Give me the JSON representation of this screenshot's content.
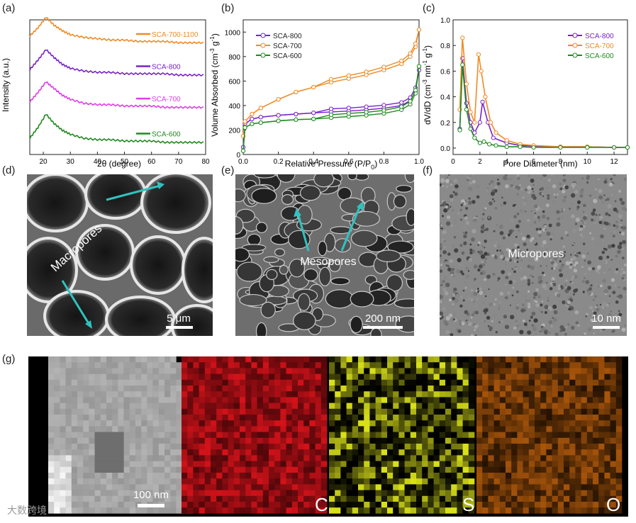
{
  "panel_labels": {
    "a": "(a)",
    "b": "(b)",
    "c": "(c)",
    "d": "(d)",
    "e": "(e)",
    "f": "(f)",
    "g": "(g)"
  },
  "chart_data": [
    {
      "type": "line",
      "panel": "a",
      "xlabel": "2θ (degree)",
      "ylabel": "Intensity (a.u.)",
      "xlim": [
        15,
        80
      ],
      "xticks": [
        20,
        30,
        40,
        50,
        60,
        70,
        80
      ],
      "series": [
        {
          "name": "SCA-700-1100",
          "color": "#f08a24",
          "offset": 0.82,
          "x": [
            15,
            18,
            21,
            24,
            27,
            30,
            35,
            40,
            45,
            50,
            55,
            60,
            65,
            70,
            75,
            80
          ],
          "y": [
            0.06,
            0.12,
            0.2,
            0.14,
            0.1,
            0.07,
            0.05,
            0.04,
            0.03,
            0.03,
            0.02,
            0.02,
            0.02,
            0.01,
            0.01,
            0.01
          ]
        },
        {
          "name": "SCA-800",
          "color": "#7a22c8",
          "offset": 0.58,
          "x": [
            15,
            18,
            21,
            24,
            27,
            30,
            35,
            40,
            45,
            50,
            55,
            60,
            65,
            70,
            75,
            80
          ],
          "y": [
            0.05,
            0.12,
            0.2,
            0.14,
            0.09,
            0.06,
            0.04,
            0.03,
            0.03,
            0.02,
            0.02,
            0.02,
            0.02,
            0.01,
            0.01,
            0.01
          ]
        },
        {
          "name": "SCA-700",
          "color": "#e03ce8",
          "offset": 0.34,
          "x": [
            15,
            18,
            21,
            24,
            27,
            30,
            35,
            40,
            45,
            50,
            55,
            60,
            65,
            70,
            75,
            80
          ],
          "y": [
            0.05,
            0.12,
            0.2,
            0.15,
            0.1,
            0.07,
            0.04,
            0.03,
            0.03,
            0.02,
            0.02,
            0.02,
            0.01,
            0.01,
            0.01,
            0.01
          ]
        },
        {
          "name": "SCA-600",
          "color": "#1f8a1f",
          "offset": 0.08,
          "x": [
            15,
            18,
            21,
            24,
            27,
            30,
            35,
            40,
            45,
            50,
            55,
            60,
            65,
            70,
            75,
            80
          ],
          "y": [
            0.04,
            0.12,
            0.22,
            0.15,
            0.1,
            0.07,
            0.04,
            0.03,
            0.03,
            0.02,
            0.02,
            0.02,
            0.01,
            0.01,
            0.01,
            0.01
          ]
        }
      ]
    },
    {
      "type": "line",
      "panel": "b",
      "xlabel": "Relative Pressure (P/P0)",
      "ylabel": "Volume Absorbed (cm-3 g-1)",
      "xlim": [
        0,
        1
      ],
      "ylim": [
        0,
        1100
      ],
      "xticks": [
        "0.0",
        "0.2",
        "0.4",
        "0.6",
        "0.8",
        "1.0"
      ],
      "yticks": [
        "0",
        "200",
        "400",
        "600",
        "800",
        "1000"
      ],
      "series": [
        {
          "name": "SCA-800",
          "color": "#7a22c8",
          "x": [
            0,
            0.01,
            0.05,
            0.1,
            0.2,
            0.3,
            0.4,
            0.5,
            0.6,
            0.7,
            0.8,
            0.9,
            0.95,
            0.98,
            1.0
          ],
          "y": [
            60,
            250,
            290,
            305,
            320,
            330,
            340,
            348,
            355,
            365,
            378,
            400,
            440,
            520,
            690
          ]
        },
        {
          "name": "SCA-700",
          "color": "#f08a24",
          "x": [
            0,
            0.01,
            0.05,
            0.1,
            0.2,
            0.3,
            0.4,
            0.5,
            0.6,
            0.7,
            0.8,
            0.9,
            0.95,
            0.98,
            1.0
          ],
          "y": [
            150,
            270,
            330,
            380,
            450,
            510,
            550,
            590,
            620,
            650,
            690,
            740,
            800,
            880,
            1020
          ]
        },
        {
          "name": "SCA-600",
          "color": "#1f8a1f",
          "x": [
            0,
            0.01,
            0.05,
            0.1,
            0.2,
            0.3,
            0.4,
            0.5,
            0.6,
            0.7,
            0.8,
            0.9,
            0.95,
            0.98,
            1.0
          ],
          "y": [
            30,
            220,
            250,
            260,
            275,
            285,
            290,
            300,
            310,
            320,
            335,
            365,
            410,
            500,
            720
          ]
        }
      ]
    },
    {
      "type": "line",
      "panel": "c",
      "xlabel": "Pore Diameter (nm)",
      "ylabel": "dV/dD (cm-3 nm-1 g-1)",
      "xlim": [
        0,
        13
      ],
      "ylim": [
        -0.05,
        1.0
      ],
      "xticks": [
        "0",
        "2",
        "4",
        "6",
        "8",
        "10",
        "12"
      ],
      "yticks": [
        "0.0",
        "0.2",
        "0.4",
        "0.6",
        "0.8",
        "1.0"
      ],
      "series": [
        {
          "name": "SCA-800",
          "color": "#7a22c8",
          "x": [
            0.5,
            0.7,
            1.0,
            1.3,
            1.6,
            2.0,
            2.2,
            2.6,
            3.0,
            4,
            5,
            6,
            8,
            10,
            12,
            13
          ],
          "y": [
            0.15,
            0.7,
            0.35,
            0.2,
            0.12,
            0.2,
            0.36,
            0.2,
            0.08,
            0.04,
            0.02,
            0.015,
            0.01,
            0.01,
            0.005,
            0.005
          ]
        },
        {
          "name": "SCA-700",
          "color": "#f08a24",
          "x": [
            0.5,
            0.7,
            1.0,
            1.3,
            1.6,
            1.9,
            2.1,
            2.4,
            2.8,
            3.2,
            4,
            5,
            6,
            8,
            10,
            12,
            13
          ],
          "y": [
            0.3,
            0.86,
            0.5,
            0.28,
            0.2,
            0.73,
            0.6,
            0.4,
            0.2,
            0.12,
            0.06,
            0.03,
            0.02,
            0.01,
            0.01,
            0.005,
            0.005
          ]
        },
        {
          "name": "SCA-600",
          "color": "#1f8a1f",
          "x": [
            0.5,
            0.7,
            1.0,
            1.3,
            1.6,
            2.0,
            2.3,
            2.7,
            3.2,
            4,
            5,
            6,
            8,
            10,
            12,
            13
          ],
          "y": [
            0.14,
            0.65,
            0.3,
            0.15,
            0.08,
            0.04,
            0.05,
            0.03,
            0.02,
            0.01,
            0.01,
            0.005,
            0.005,
            0.005,
            0.005,
            0.005
          ]
        }
      ]
    }
  ],
  "micrographs": {
    "d": {
      "annotation": "Macropores",
      "scale": "5 μm"
    },
    "e": {
      "annotation": "Mesopores",
      "scale": "200 nm"
    },
    "f": {
      "annotation": "Micropores",
      "scale": "10 nm"
    }
  },
  "mapping": {
    "scale": "100 nm",
    "elements": [
      {
        "symbol": "C",
        "color": "#e0141c"
      },
      {
        "symbol": "S",
        "color": "#d8e01a"
      },
      {
        "symbol": "O",
        "color": "#f07a10"
      }
    ]
  },
  "watermark": "大数跨境"
}
